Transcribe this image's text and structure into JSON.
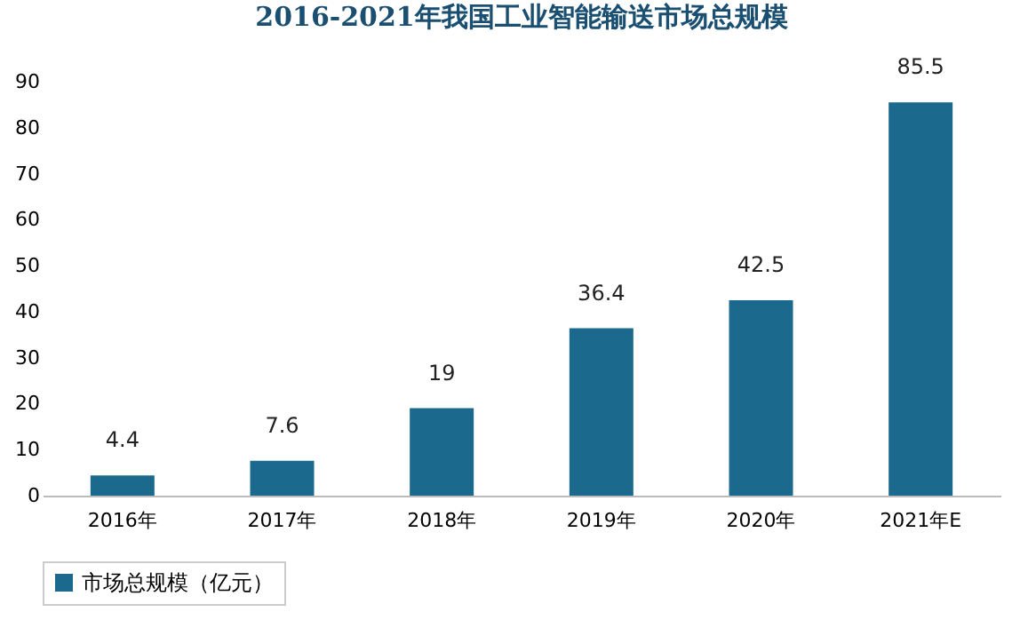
{
  "chart_data": {
    "type": "bar",
    "title": "2016-2021年我国工业智能输送市场总规模",
    "categories": [
      "2016年",
      "2017年",
      "2018年",
      "2019年",
      "2020年",
      "2021年E"
    ],
    "series": [
      {
        "name": "市场总规模（亿元）",
        "color": "#1b6a8d",
        "values": [
          4.4,
          7.6,
          19,
          36.4,
          42.5,
          85.5
        ]
      }
    ],
    "ylim": [
      0,
      90
    ],
    "yticks": [
      0,
      10,
      20,
      30,
      40,
      50,
      60,
      70,
      80,
      90
    ],
    "data_labels": true,
    "grid": false,
    "legend": "bottom"
  }
}
